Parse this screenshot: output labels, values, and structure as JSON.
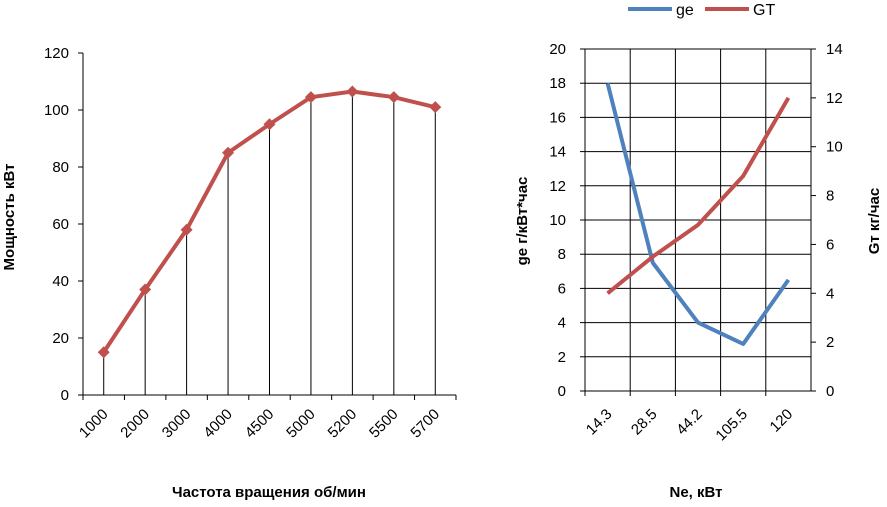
{
  "colors": {
    "power": "#C0504D",
    "ge": "#4F81BD",
    "gt": "#C0504D",
    "axis": "#000000",
    "grid": "#000000"
  },
  "chart_data": [
    {
      "type": "line",
      "title": "",
      "xlabel": "Частота вращения об/мин",
      "ylabel": "Мощность кВт",
      "categories": [
        "1000",
        "2000",
        "3000",
        "4000",
        "4500",
        "5000",
        "5200",
        "5500",
        "5700"
      ],
      "series": [
        {
          "name": "Мощность",
          "values": [
            15,
            37,
            58,
            85,
            95,
            104.5,
            106.5,
            104.5,
            101
          ]
        }
      ],
      "ylim": [
        0,
        120
      ],
      "yticks": [
        "0",
        "20",
        "40",
        "60",
        "80",
        "100",
        "120"
      ],
      "drop_lines": true,
      "marker": "diamond",
      "legend": "none"
    },
    {
      "type": "line",
      "title": "",
      "xlabel": "Ne, кВт",
      "ylabel": "ge г/кВт*час",
      "y2label": "Gт кг/час",
      "categories": [
        "14.3",
        "28.5",
        "44.2",
        "105.5",
        "120"
      ],
      "series": [
        {
          "name": "ge",
          "axis": "left",
          "values": [
            18,
            7.5,
            4,
            2.75,
            6.5
          ]
        },
        {
          "name": "GT",
          "axis": "right",
          "values": [
            4,
            5.5,
            6.8,
            8.8,
            12
          ]
        }
      ],
      "ylim": [
        0,
        20
      ],
      "y2lim": [
        0,
        14
      ],
      "yticks": [
        "0",
        "2",
        "4",
        "6",
        "8",
        "10",
        "12",
        "14",
        "16",
        "18",
        "20"
      ],
      "y2ticks": [
        "0",
        "2",
        "4",
        "6",
        "8",
        "10",
        "12",
        "14"
      ],
      "grid": true,
      "legend": "top"
    }
  ]
}
